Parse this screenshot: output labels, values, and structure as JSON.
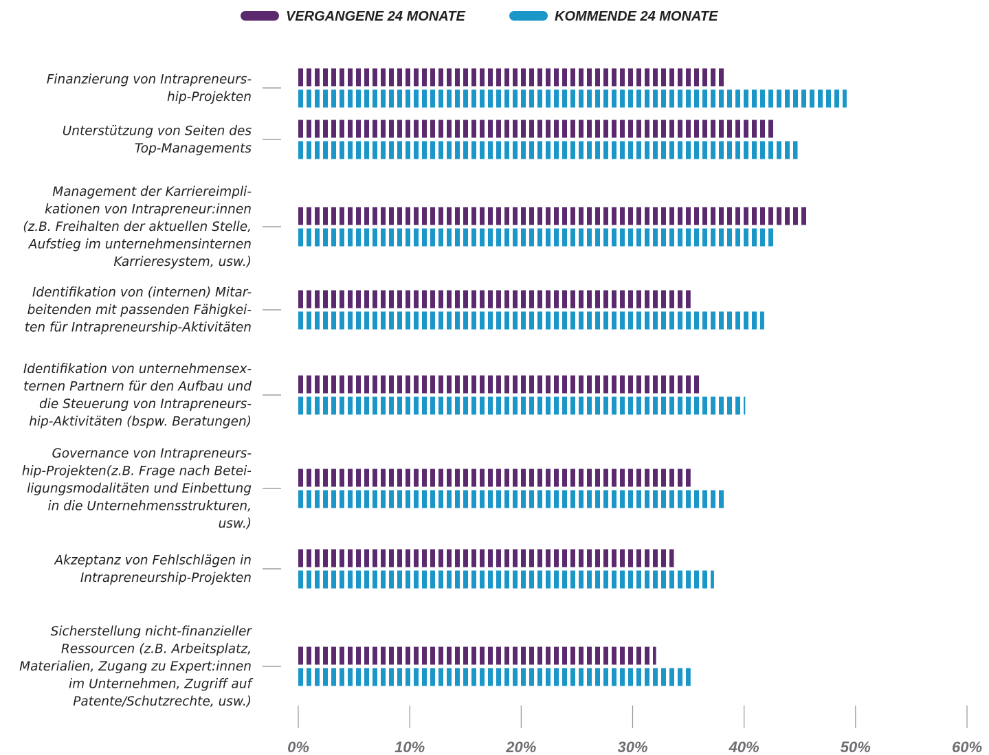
{
  "chart_data": {
    "type": "bar",
    "orientation": "horizontal",
    "xlim": [
      0,
      60
    ],
    "ticks": [
      "0%",
      "10%",
      "20%",
      "30%",
      "40%",
      "50%",
      "60%"
    ],
    "tick_values": [
      0,
      10,
      20,
      30,
      40,
      50,
      60
    ],
    "grid": false,
    "legend_position": "top-center",
    "categories": [
      [
        "Finanzierung von Intrapreneurs-",
        "hip-Projekten"
      ],
      [
        "Unterstützung von Seiten des",
        "Top-Managements"
      ],
      [
        "Management der Karriereimpli-",
        "kationen von Intrapreneur:innen",
        "(z.B. Freihalten der aktuellen Stelle,",
        "Aufstieg im unternehmensinternen",
        "Karrieresystem, usw.)"
      ],
      [
        "Identifikation von (internen) Mitar-",
        "beitenden mit passenden Fähigkei-",
        "ten für Intrapreneurship-Aktivitäten"
      ],
      [
        "Identifikation von unternehmensex-",
        "ternen Partnern für den Aufbau und",
        "die Steuerung von Intrapreneurs-",
        "hip-Aktivitäten (bspw. Beratungen)"
      ],
      [
        "Governance von Intrapreneurs-",
        "hip-Projekten(z.B. Frage nach Betei-",
        "ligungsmodalitäten und Einbettung",
        "in die Unternehmensstrukturen,",
        "usw.)"
      ],
      [
        "Akzeptanz von Fehlschlägen in",
        "Intrapreneurship-Projekten"
      ],
      [
        "Sicherstellung nicht-finanzieller",
        "Ressourcen (z.B. Arbeitsplatz,",
        "Materialien, Zugang zu Expert:innen",
        "im Unternehmen, Zugriff auf",
        "Patente/Schutzrechte, usw.)"
      ]
    ],
    "series": [
      {
        "name": "VERGANGENE 24 MONATE",
        "color": "#5b2a6e",
        "values": [
          38.4,
          42.8,
          45.8,
          35.2,
          36.0,
          35.2,
          33.7,
          32.1
        ]
      },
      {
        "name": "KOMMENDE 24 MONATE",
        "color": "#1a96c8",
        "values": [
          49.2,
          44.8,
          42.7,
          41.8,
          40.1,
          38.4,
          37.3,
          35.2
        ]
      }
    ]
  }
}
